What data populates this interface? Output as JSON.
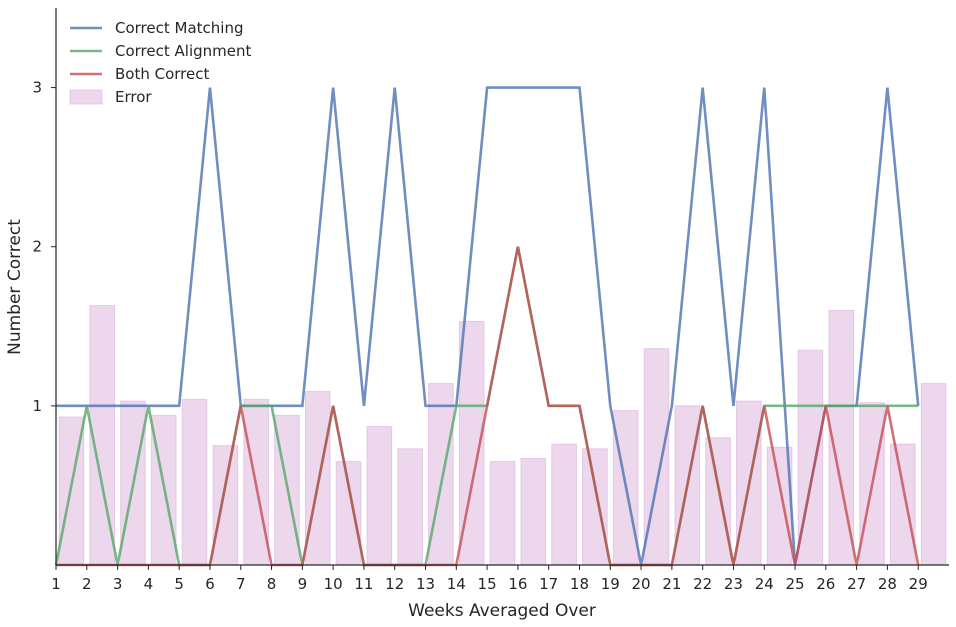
{
  "chart_data": {
    "type": "line",
    "xlabel": "Weeks Averaged Over",
    "ylabel": "Number Correct",
    "x": [
      1,
      2,
      3,
      4,
      5,
      6,
      7,
      8,
      9,
      10,
      11,
      12,
      13,
      14,
      15,
      16,
      17,
      18,
      19,
      20,
      21,
      22,
      23,
      24,
      25,
      26,
      27,
      28,
      29
    ],
    "xlim": [
      1,
      30
    ],
    "ylim": [
      0,
      3.5
    ],
    "yticks": [
      1,
      2,
      3
    ],
    "legend_position": "top-left",
    "grid": false,
    "series": [
      {
        "name": "Correct Matching",
        "type": "line",
        "color": "#4c72b0",
        "values": [
          1,
          1,
          1,
          1,
          1,
          3,
          1,
          1,
          1,
          3,
          1,
          3,
          1,
          1,
          3,
          3,
          3,
          3,
          1,
          0,
          1,
          3,
          1,
          3,
          0,
          1,
          1,
          3,
          1
        ]
      },
      {
        "name": "Correct Alignment",
        "type": "line",
        "color": "#55a868",
        "values": [
          0,
          1,
          0,
          1,
          0,
          0,
          1,
          1,
          0,
          1,
          0,
          0,
          0,
          1,
          1,
          2,
          1,
          1,
          0,
          0,
          0,
          1,
          0,
          1,
          1,
          1,
          1,
          1,
          1
        ]
      },
      {
        "name": "Both Correct",
        "type": "line",
        "color": "#c44e52",
        "values": [
          0,
          0,
          0,
          0,
          0,
          0,
          1,
          0,
          0,
          1,
          0,
          0,
          0,
          0,
          1,
          2,
          1,
          1,
          0,
          0,
          0,
          1,
          0,
          1,
          0,
          1,
          0,
          1,
          0
        ]
      },
      {
        "name": "Error",
        "type": "bar",
        "color": "#dcb0dc",
        "values": [
          0.93,
          1.63,
          1.03,
          0.94,
          1.04,
          0.75,
          1.04,
          0.94,
          1.09,
          0.65,
          0.87,
          0.73,
          1.14,
          1.53,
          0.65,
          0.67,
          0.76,
          0.73,
          0.97,
          1.36,
          1.0,
          0.8,
          1.03,
          0.74,
          1.35,
          1.6,
          1.02,
          0.76,
          1.14
        ]
      }
    ]
  }
}
